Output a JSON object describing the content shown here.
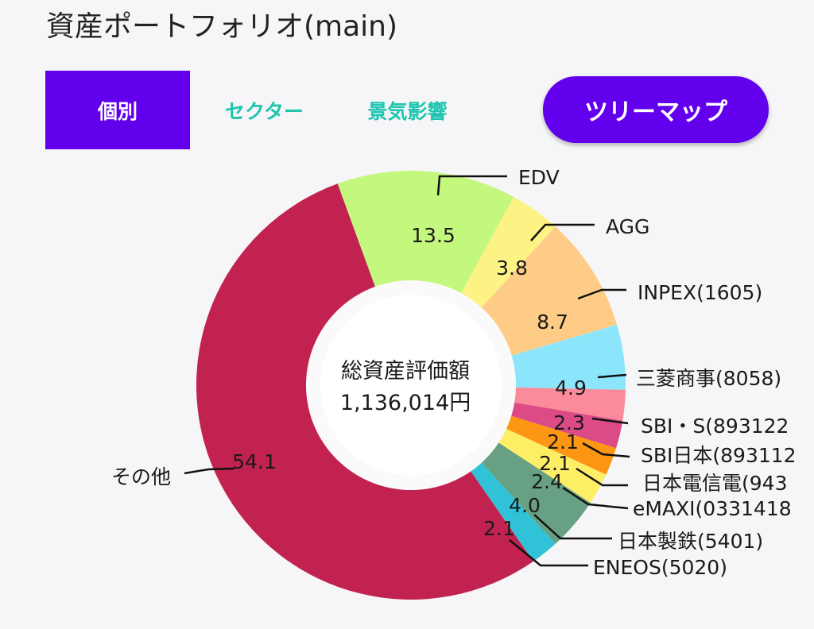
{
  "page": {
    "title": "資産ポートフォリオ(main)"
  },
  "tabs": [
    {
      "label": "個別",
      "active": true
    },
    {
      "label": "セクター",
      "active": false
    },
    {
      "label": "景気影響",
      "active": false
    }
  ],
  "treemap_button": {
    "label": "ツリーマップ"
  },
  "colors": {
    "accent": "#6200ee",
    "tab_text": "#20c5b0"
  },
  "chart_data": {
    "type": "pie",
    "center_title": "総資産評価額",
    "center_value": "1,136,014円",
    "slices": [
      {
        "label": "EDV",
        "value": 13.5,
        "value_label": "13.5",
        "color": "#c3f77d"
      },
      {
        "label": "AGG",
        "value": 3.8,
        "value_label": "3.8",
        "color": "#fdf384"
      },
      {
        "label": "INPEX(1605)",
        "value": 8.7,
        "value_label": "8.7",
        "color": "#ffcc88"
      },
      {
        "label": "三菱商事(8058)",
        "value": 4.9,
        "value_label": "4.9",
        "color": "#8be6fb"
      },
      {
        "label": "SBI・S(893122",
        "value": 2.3,
        "value_label": "2.3",
        "color": "#fb8b9a"
      },
      {
        "label": "SBI日本(893112",
        "value": 2.1,
        "value_label": "2.1",
        "color": "#dd4b86"
      },
      {
        "label": "日本電信電(943",
        "value": 2.1,
        "value_label": "2.1",
        "color": "#fd9612"
      },
      {
        "label": "eMAXI(0331418",
        "value": 2.4,
        "value_label": "2.4",
        "color": "#fdee66"
      },
      {
        "label": "日本製鉄(5401)",
        "value": 4.0,
        "value_label": "4.0",
        "color": "#67a082"
      },
      {
        "label": "ENEOS(5020)",
        "value": 2.1,
        "value_label": "2.1",
        "color": "#30c2d6"
      },
      {
        "label": "その他",
        "value": 54.1,
        "value_label": "54.1",
        "color": "#c2224f"
      }
    ]
  }
}
